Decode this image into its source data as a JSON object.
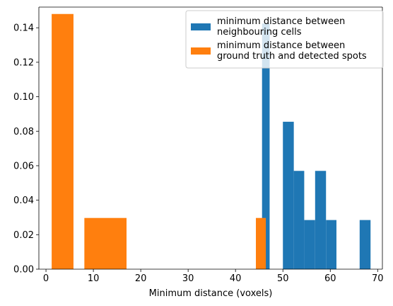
{
  "chart_data": {
    "type": "bar",
    "xlabel": "Minimum distance (voxels)",
    "ylabel": "",
    "xlim": [
      -1.5,
      71
    ],
    "ylim": [
      0,
      0.152
    ],
    "xticks": [
      0,
      10,
      20,
      30,
      40,
      50,
      60,
      70
    ],
    "yticks": [
      0.0,
      0.02,
      0.04,
      0.06,
      0.08,
      0.1,
      0.12,
      0.14
    ],
    "ytick_labels": [
      "0.00",
      "0.02",
      "0.04",
      "0.06",
      "0.08",
      "0.10",
      "0.12",
      "0.14"
    ],
    "legend_position": "top-right",
    "series": [
      {
        "name": "minimum distance between neighbouring cells",
        "name_lines": [
          "minimum distance between",
          "neighbouring cells"
        ],
        "color": "#1f77b4",
        "bins": [
          {
            "x0": 45.6,
            "x1": 47.2,
            "value": 0.1425
          },
          {
            "x0": 50.0,
            "x1": 52.3,
            "value": 0.0855
          },
          {
            "x0": 52.3,
            "x1": 54.5,
            "value": 0.057
          },
          {
            "x0": 54.5,
            "x1": 56.8,
            "value": 0.0285
          },
          {
            "x0": 56.8,
            "x1": 59.1,
            "value": 0.057
          },
          {
            "x0": 59.1,
            "x1": 61.3,
            "value": 0.0285
          },
          {
            "x0": 66.2,
            "x1": 68.5,
            "value": 0.0285
          }
        ]
      },
      {
        "name": "minimum distance between ground truth and detected spots",
        "name_lines": [
          "minimum distance between",
          "ground truth and detected spots"
        ],
        "color": "#ff7f0e",
        "bins": [
          {
            "x0": 1.2,
            "x1": 5.8,
            "value": 0.148
          },
          {
            "x0": 8.1,
            "x1": 17.0,
            "value": 0.0297
          },
          {
            "x0": 44.3,
            "x1": 46.4,
            "value": 0.0297
          }
        ]
      }
    ]
  }
}
